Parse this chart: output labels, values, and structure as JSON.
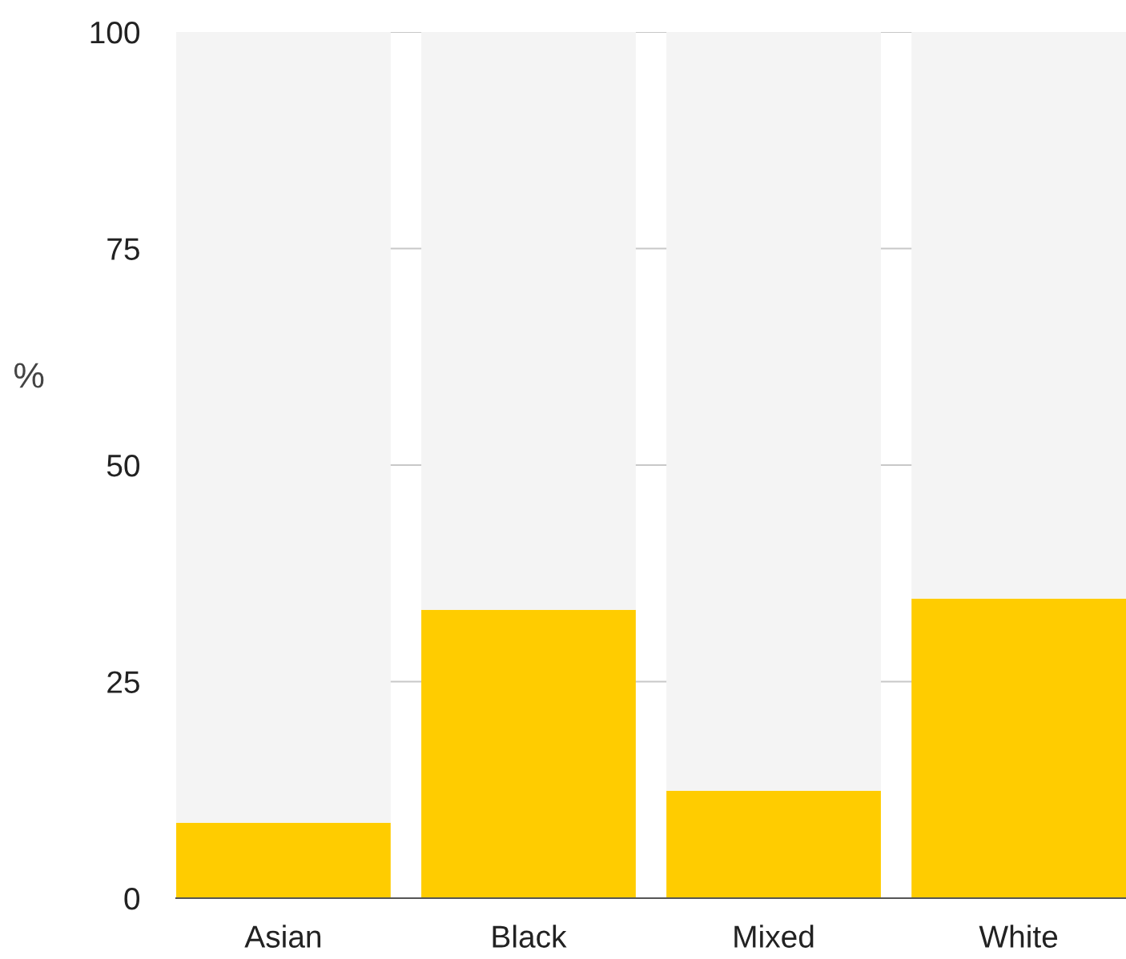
{
  "chart_data": {
    "type": "bar",
    "stacked": true,
    "ylabel": "%",
    "categories": [
      "Asian",
      "Black",
      "Mixed",
      "White"
    ],
    "series": [
      {
        "color": "#ffcc00",
        "values": [
          8.7,
          33.3,
          12.4,
          34.6
        ]
      },
      {
        "color": "#f4f4f4",
        "values": [
          91.3,
          66.7,
          87.6,
          65.4
        ]
      }
    ],
    "ylim": [
      0,
      100
    ],
    "yticks": [
      0,
      25,
      50,
      75,
      100
    ],
    "grid": "y",
    "legend": false
  }
}
